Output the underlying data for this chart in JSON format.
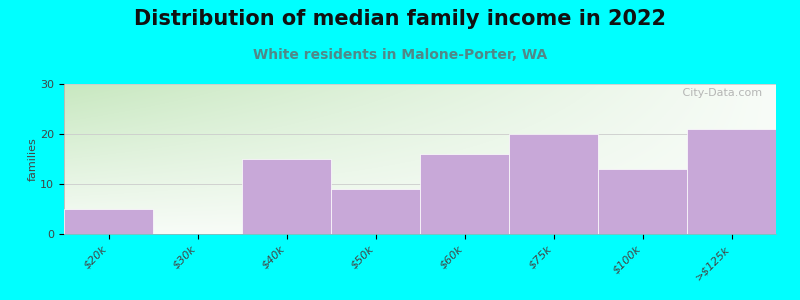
{
  "title": "Distribution of median family income in 2022",
  "subtitle": "White residents in Malone-Porter, WA",
  "ylabel": "families",
  "categories": [
    "$20k",
    "$30k",
    "$40k",
    "$50k",
    "$60k",
    "$75k",
    "$100k",
    ">$125k"
  ],
  "values": [
    5,
    0,
    15,
    9,
    16,
    20,
    13,
    21
  ],
  "bar_color": "#c8a8d8",
  "bar_edge_color": "#c8a8d8",
  "ylim": [
    0,
    30
  ],
  "yticks": [
    0,
    10,
    20,
    30
  ],
  "background_outer": "#00ffff",
  "grad_color_topleft": "#c8e8c0",
  "grad_color_right": "#f4f8f0",
  "grad_color_topright": "#f0f4f0",
  "title_fontsize": 15,
  "subtitle_fontsize": 10,
  "subtitle_color": "#508888",
  "watermark_text": "   City-Data.com",
  "watermark_color": "#aaaaaa"
}
